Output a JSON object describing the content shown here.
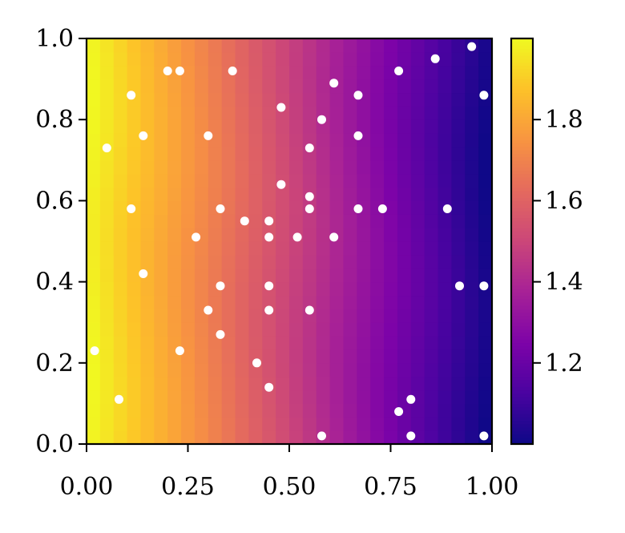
{
  "chart_data": {
    "type": "heatmap",
    "title": "",
    "xlabel": "",
    "ylabel": "",
    "xlim": [
      0.0,
      1.0
    ],
    "ylim": [
      0.0,
      1.0
    ],
    "colormap": "plasma",
    "color_range": [
      1.0,
      2.0
    ],
    "grid": false,
    "x_ticks": [
      "0.00",
      "0.25",
      "0.50",
      "0.75",
      "1.00"
    ],
    "y_ticks": [
      "0.0",
      "0.2",
      "0.4",
      "0.6",
      "0.8",
      "1.0"
    ],
    "colorbar": {
      "ticks": [
        "1.2",
        "1.4",
        "1.6",
        "1.8"
      ],
      "tick_values": [
        1.2,
        1.4,
        1.6,
        1.8
      ]
    },
    "grid_resolution": [
      30,
      30
    ],
    "field_description": "value = 2 - x (approximately)",
    "points_color": "#ffffff",
    "points": [
      [
        0.02,
        0.23
      ],
      [
        0.05,
        0.73
      ],
      [
        0.08,
        0.11
      ],
      [
        0.11,
        0.86
      ],
      [
        0.11,
        0.58
      ],
      [
        0.14,
        0.76
      ],
      [
        0.14,
        0.42
      ],
      [
        0.2,
        0.92
      ],
      [
        0.23,
        0.92
      ],
      [
        0.23,
        0.23
      ],
      [
        0.27,
        0.51
      ],
      [
        0.3,
        0.76
      ],
      [
        0.3,
        0.33
      ],
      [
        0.33,
        0.58
      ],
      [
        0.33,
        0.39
      ],
      [
        0.33,
        0.27
      ],
      [
        0.36,
        0.92
      ],
      [
        0.39,
        0.55
      ],
      [
        0.42,
        0.2
      ],
      [
        0.45,
        0.55
      ],
      [
        0.45,
        0.51
      ],
      [
        0.45,
        0.39
      ],
      [
        0.45,
        0.33
      ],
      [
        0.45,
        0.14
      ],
      [
        0.48,
        0.83
      ],
      [
        0.48,
        0.64
      ],
      [
        0.52,
        0.51
      ],
      [
        0.55,
        0.73
      ],
      [
        0.55,
        0.61
      ],
      [
        0.55,
        0.58
      ],
      [
        0.55,
        0.33
      ],
      [
        0.58,
        0.8
      ],
      [
        0.58,
        0.02
      ],
      [
        0.61,
        0.89
      ],
      [
        0.61,
        0.51
      ],
      [
        0.67,
        0.86
      ],
      [
        0.67,
        0.76
      ],
      [
        0.67,
        0.58
      ],
      [
        0.73,
        0.58
      ],
      [
        0.77,
        0.92
      ],
      [
        0.77,
        0.08
      ],
      [
        0.8,
        0.11
      ],
      [
        0.8,
        0.02
      ],
      [
        0.86,
        0.95
      ],
      [
        0.89,
        0.58
      ],
      [
        0.92,
        0.39
      ],
      [
        0.95,
        0.98
      ],
      [
        0.98,
        0.86
      ],
      [
        0.98,
        0.39
      ],
      [
        0.98,
        0.02
      ]
    ]
  }
}
